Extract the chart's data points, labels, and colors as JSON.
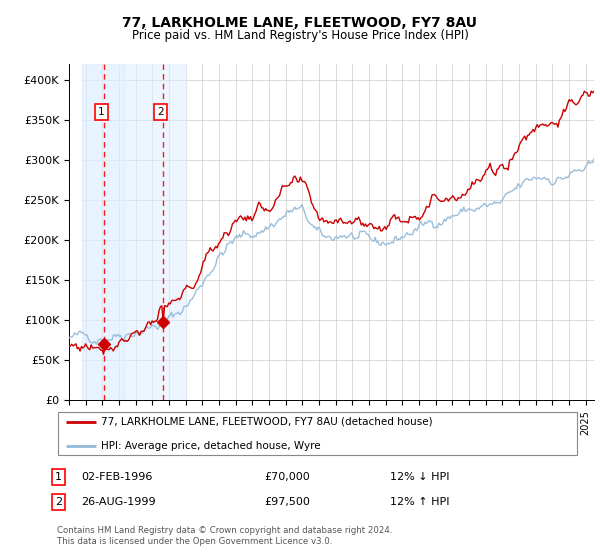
{
  "title": "77, LARKHOLME LANE, FLEETWOOD, FY7 8AU",
  "subtitle": "Price paid vs. HM Land Registry's House Price Index (HPI)",
  "legend_line1": "77, LARKHOLME LANE, FLEETWOOD, FY7 8AU (detached house)",
  "legend_line2": "HPI: Average price, detached house, Wyre",
  "sale1_date": "02-FEB-1996",
  "sale1_price": "£70,000",
  "sale1_hpi": "12% ↓ HPI",
  "sale2_date": "26-AUG-1999",
  "sale2_price": "£97,500",
  "sale2_hpi": "12% ↑ HPI",
  "footer": "Contains HM Land Registry data © Crown copyright and database right 2024.\nThis data is licensed under the Open Government Licence v3.0.",
  "hpi_color": "#90b8d8",
  "price_color": "#cc0000",
  "sale1_x": 1996.09,
  "sale1_y": 70000,
  "sale2_x": 1999.65,
  "sale2_y": 97500,
  "xmin": 1994.0,
  "xmax": 2025.5,
  "ymin": 0,
  "ymax": 420000,
  "yticks": [
    0,
    50000,
    100000,
    150000,
    200000,
    250000,
    300000,
    350000,
    400000
  ],
  "ytick_labels": [
    "£0",
    "£50K",
    "£100K",
    "£150K",
    "£200K",
    "£250K",
    "£300K",
    "£350K",
    "£400K"
  ],
  "sale_region_color": "#ddeeff",
  "hatch_color": "#cccccc"
}
